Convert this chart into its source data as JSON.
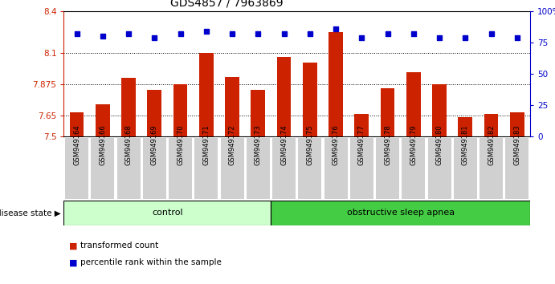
{
  "title": "GDS4857 / 7963869",
  "samples": [
    "GSM949164",
    "GSM949166",
    "GSM949168",
    "GSM949169",
    "GSM949170",
    "GSM949171",
    "GSM949172",
    "GSM949173",
    "GSM949174",
    "GSM949175",
    "GSM949176",
    "GSM949177",
    "GSM949178",
    "GSM949179",
    "GSM949180",
    "GSM949181",
    "GSM949182",
    "GSM949183"
  ],
  "red_values": [
    7.67,
    7.73,
    7.92,
    7.835,
    7.875,
    8.1,
    7.925,
    7.835,
    8.07,
    8.03,
    8.25,
    7.66,
    7.845,
    7.96,
    7.875,
    7.64,
    7.66,
    7.67
  ],
  "blue_values": [
    82,
    80,
    82,
    79,
    82,
    84,
    82,
    82,
    82,
    82,
    86,
    79,
    82,
    82,
    79,
    79,
    82,
    79
  ],
  "ylim_left": [
    7.5,
    8.4
  ],
  "ylim_right": [
    0,
    100
  ],
  "yticks_left": [
    7.5,
    7.65,
    7.875,
    8.1,
    8.4
  ],
  "yticks_left_labels": [
    "7.5",
    "7.65",
    "7.875",
    "8.1",
    "8.4"
  ],
  "yticks_right": [
    0,
    25,
    50,
    75,
    100
  ],
  "yticks_right_labels": [
    "0",
    "25",
    "50",
    "75",
    "100%"
  ],
  "bar_color": "#cc2200",
  "dot_color": "#0000cc",
  "n_control": 8,
  "n_total": 18,
  "control_label": "control",
  "osa_label": "obstructive sleep apnea",
  "disease_state_label": "disease state",
  "legend_bar_label": "transformed count",
  "legend_dot_label": "percentile rank within the sample",
  "control_bg": "#ccffcc",
  "osa_bg": "#44cc44",
  "title_fontsize": 10,
  "tick_fontsize": 7.5,
  "bar_width": 0.55
}
